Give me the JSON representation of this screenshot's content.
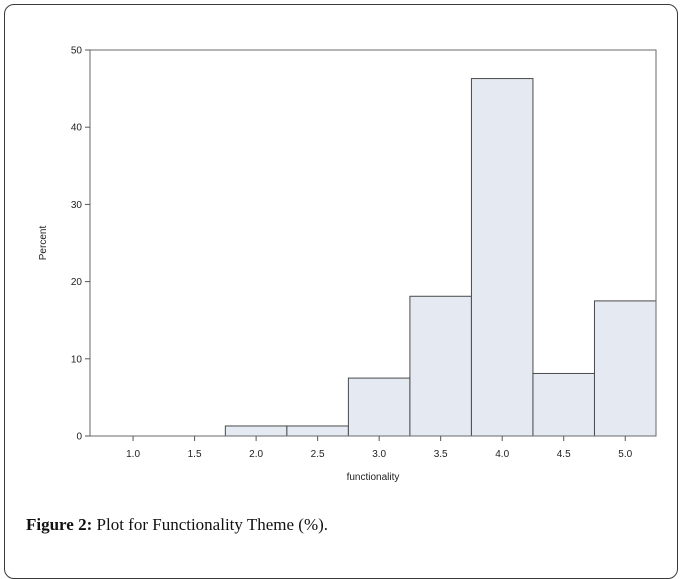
{
  "chart_data": {
    "type": "bar",
    "subtype": "histogram",
    "bins": [
      {
        "x_start": 1.75,
        "x_end": 2.25,
        "value": 1.3
      },
      {
        "x_start": 2.25,
        "x_end": 2.75,
        "value": 1.3
      },
      {
        "x_start": 2.75,
        "x_end": 3.25,
        "value": 7.5
      },
      {
        "x_start": 3.25,
        "x_end": 3.75,
        "value": 18.1
      },
      {
        "x_start": 3.75,
        "x_end": 4.25,
        "value": 46.3
      },
      {
        "x_start": 4.25,
        "x_end": 4.75,
        "value": 8.1
      },
      {
        "x_start": 4.75,
        "x_end": 5.25,
        "value": 17.5
      }
    ],
    "xlabel": "functionality",
    "ylabel": "Percent",
    "xlim": [
      0.65,
      5.25
    ],
    "ylim": [
      0,
      50
    ],
    "xticks": [
      "1.0",
      "1.5",
      "2.0",
      "2.5",
      "3.0",
      "3.5",
      "4.0",
      "4.5",
      "5.0"
    ],
    "yticks": [
      "0",
      "10",
      "20",
      "30",
      "40",
      "50"
    ],
    "grid": false,
    "bar_fill": "#e4e9f2",
    "bar_stroke": "#4a4a4a"
  },
  "caption": {
    "label": "Figure 2:",
    "text": " Plot for Functionality Theme (%)."
  }
}
